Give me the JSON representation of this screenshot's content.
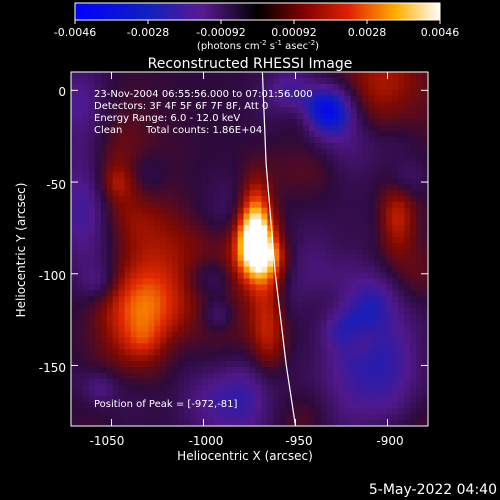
{
  "chart_data": {
    "type": "heatmap",
    "title": "Reconstructed RHESSI Image",
    "xlabel": "Heliocentric X (arcsec)",
    "ylabel": "Heliocentric Y (arcsec)",
    "xlim": [
      -1072,
      -878
    ],
    "ylim": [
      -183,
      10
    ],
    "xticks": [
      -1050,
      -1000,
      -950,
      -900
    ],
    "yticks": [
      0,
      -50,
      -100,
      -150
    ],
    "colorbar": {
      "ticks": [
        "-0.0046",
        "-0.0028",
        "-0.00092",
        "0.00092",
        "0.0028",
        "0.0046"
      ],
      "range": [
        -0.0046,
        0.0046
      ],
      "units_prefix": "(photons cm",
      "units_exp1": "-2",
      "units_mid": " s",
      "units_exp2": "-1",
      "units_mid2": " asec",
      "units_exp3": "-2",
      "units_suffix": ")"
    },
    "annotations": {
      "time_range": "23-Nov-2004 06:55:56.000 to 07:01:56.000",
      "detectors": "Detectors: 3F 4F 5F 6F 7F 8F, Att 0",
      "energy": "Energy Range: 6.0 - 12.0 keV",
      "clean_label": "Clean",
      "total_counts": "Total counts: 1.86E+04",
      "peak": "Position of Peak = [-972,-81]"
    },
    "peak_position": [
      -972,
      -81
    ],
    "limb_points": [
      [
        -968,
        10
      ],
      [
        -966,
        -40
      ],
      [
        -961,
        -100
      ],
      [
        -955,
        -150
      ],
      [
        -950,
        -183
      ]
    ]
  },
  "footer": {
    "date": "5-May-2022 04:40"
  }
}
